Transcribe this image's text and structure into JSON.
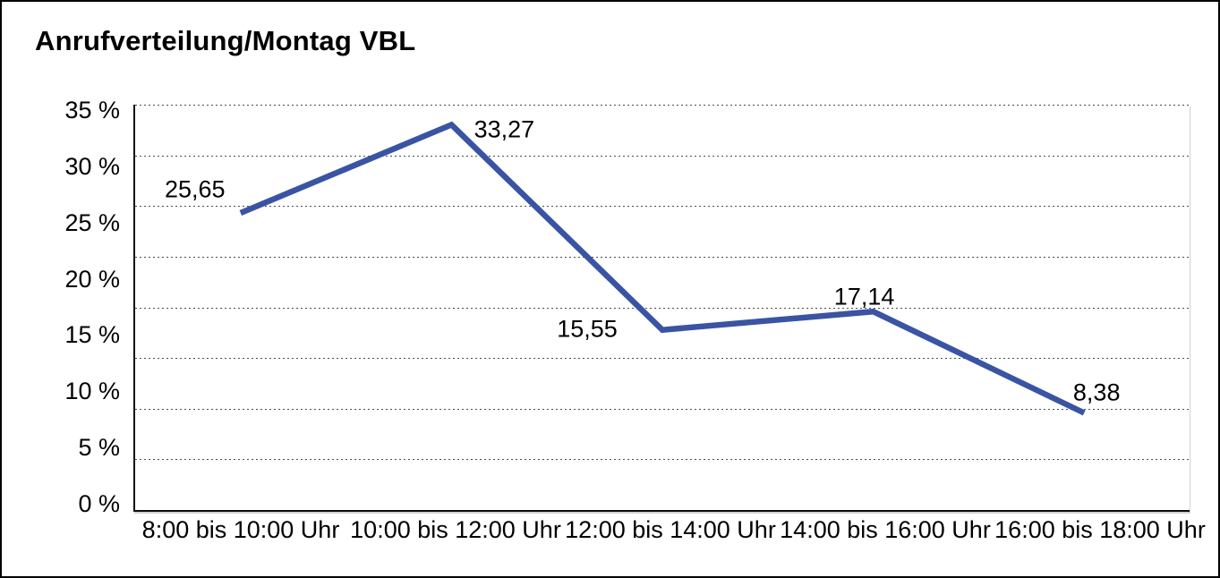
{
  "title": "Anrufverteilung/Montag VBL",
  "chart_data": {
    "type": "line",
    "title": "Anrufverteilung/Montag VBL",
    "categories": [
      "8:00 bis 10:00 Uhr",
      "10:00 bis 12:00 Uhr",
      "12:00 bis 14:00 Uhr",
      "14:00 bis 16:00 Uhr",
      "16:00 bis 18:00 Uhr"
    ],
    "values": [
      25.65,
      33.27,
      15.55,
      17.14,
      8.38
    ],
    "value_labels": [
      "25,65",
      "33,27",
      "15,55",
      "17,14",
      "8,38"
    ],
    "y_ticks": [
      "35 %",
      "30 %",
      "25 %",
      "20 %",
      "15 %",
      "10 %",
      "5 %",
      "0 %"
    ],
    "ylim": [
      0,
      35
    ],
    "xlabel": "",
    "ylabel": "",
    "grid": true,
    "legend": false,
    "line_color": "#3A54A3",
    "axis_color": "#0d0d0d",
    "text_color": "#000000"
  }
}
